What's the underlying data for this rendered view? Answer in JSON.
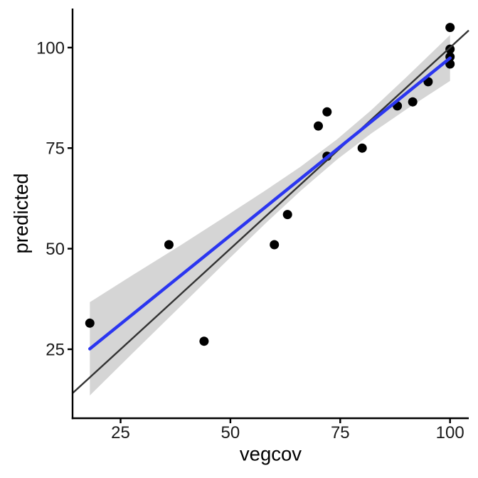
{
  "figure": {
    "background_color": "#ffffff",
    "kind": "scatter plot with linear fit, confidence ribbon and identity line"
  },
  "chart_data": {
    "type": "scatter",
    "title": "",
    "xlabel": "vegcov",
    "ylabel": "predicted",
    "x_ticks": [
      25,
      50,
      75,
      100
    ],
    "y_ticks": [
      25,
      50,
      75,
      100
    ],
    "xlim": [
      14.07,
      104.25
    ],
    "ylim": [
      7.85,
      109.7
    ],
    "grid": false,
    "legend": false,
    "points": [
      [
        18,
        31.5
      ],
      [
        36,
        51
      ],
      [
        44,
        27
      ],
      [
        60,
        51
      ],
      [
        63,
        58.5
      ],
      [
        70,
        80.5
      ],
      [
        72,
        73
      ],
      [
        72,
        84
      ],
      [
        80,
        75
      ],
      [
        88,
        85.5
      ],
      [
        91.5,
        86.5
      ],
      [
        95,
        91.5
      ],
      [
        100,
        95.9
      ],
      [
        100,
        97.7
      ],
      [
        100,
        99.6
      ],
      [
        100,
        105
      ]
    ],
    "point_color": "#000000",
    "point_radius": 6.5,
    "regression_line": {
      "x1": 18,
      "y1": 25.1,
      "x2": 100,
      "y2": 97.4,
      "color": "#2B36F0",
      "width": 4.5
    },
    "identity_line": {
      "slope": 1,
      "intercept": 0,
      "color": "#333333",
      "width": 2.4
    },
    "ribbon": {
      "color": "#D5D5D5",
      "x": [
        18,
        28,
        38,
        48,
        58,
        66,
        74.3,
        82,
        90,
        100
      ],
      "upper": [
        36.7,
        43.6,
        50.4,
        57.4,
        64.5,
        70.4,
        77.2,
        84.4,
        92.6,
        103.1
      ],
      "lower": [
        13.5,
        24.3,
        35.0,
        45.7,
        56.3,
        64.4,
        72.2,
        78.6,
        84.6,
        91.7
      ]
    },
    "axis_color": "#000000",
    "tick_label_color": "#1a1a1a"
  }
}
